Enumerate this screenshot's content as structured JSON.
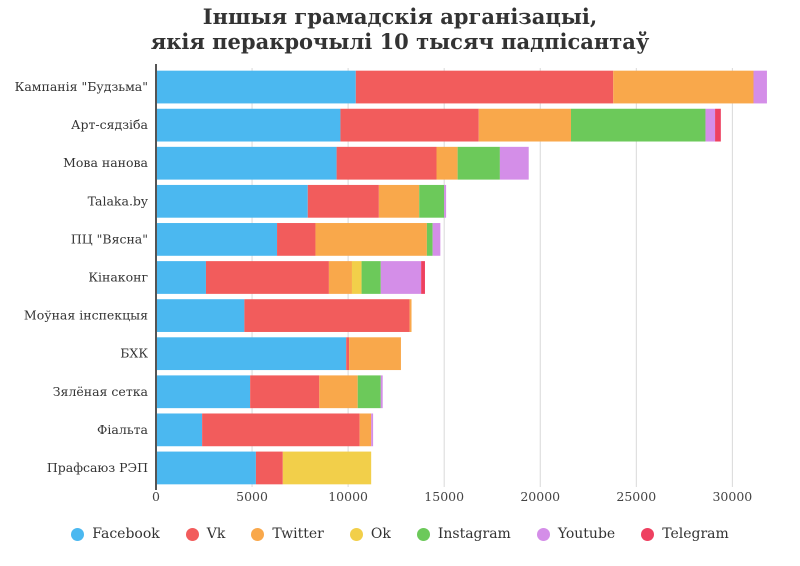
{
  "chart_data": {
    "type": "bar",
    "orientation": "horizontal",
    "stacked": true,
    "title_lines": [
      "Іншыя грамадскія арганізацыі,",
      "якія перакрочылі 10 тысяч падпісантаў"
    ],
    "categories": [
      "Кампанія \"Будзьма\"",
      "Арт-сядзіба",
      "Мова нанова",
      "Talaka.by",
      "ПЦ \"Вясна\"",
      "Кінаконг",
      "Моўная інспекцыя",
      "БХК",
      "Зялёная сетка",
      "Фіальта",
      "Прафсаюз РЭП"
    ],
    "series": [
      {
        "name": "Facebook",
        "color": "#4bb8f0",
        "values": [
          10400,
          9600,
          9400,
          7900,
          6300,
          2600,
          4600,
          9900,
          4900,
          2400,
          5200
        ]
      },
      {
        "name": "Vk",
        "color": "#f25c5c",
        "values": [
          13400,
          7200,
          5200,
          3700,
          2000,
          6400,
          8600,
          150,
          3600,
          8200,
          1400
        ]
      },
      {
        "name": "Twitter",
        "color": "#f9a84b",
        "values": [
          7300,
          4800,
          1100,
          2100,
          5800,
          1200,
          100,
          2700,
          2000,
          600,
          0
        ]
      },
      {
        "name": "Ok",
        "color": "#f2cf4a",
        "values": [
          0,
          0,
          0,
          0,
          0,
          500,
          0,
          0,
          0,
          0,
          4600
        ]
      },
      {
        "name": "Instagram",
        "color": "#6cc95a",
        "values": [
          0,
          7000,
          2200,
          1300,
          300,
          1000,
          0,
          0,
          1200,
          0,
          0
        ]
      },
      {
        "name": "Youtube",
        "color": "#d48ee8",
        "values": [
          700,
          500,
          1500,
          100,
          400,
          2100,
          0,
          0,
          100,
          100,
          0
        ]
      },
      {
        "name": "Telegram",
        "color": "#ee4060",
        "values": [
          0,
          300,
          0,
          0,
          0,
          200,
          0,
          0,
          0,
          0,
          0
        ]
      }
    ],
    "xlim": [
      0,
      33000
    ],
    "xticks": [
      0,
      5000,
      10000,
      15000,
      20000,
      25000,
      30000
    ],
    "grid": true,
    "legend_position": "bottom"
  }
}
